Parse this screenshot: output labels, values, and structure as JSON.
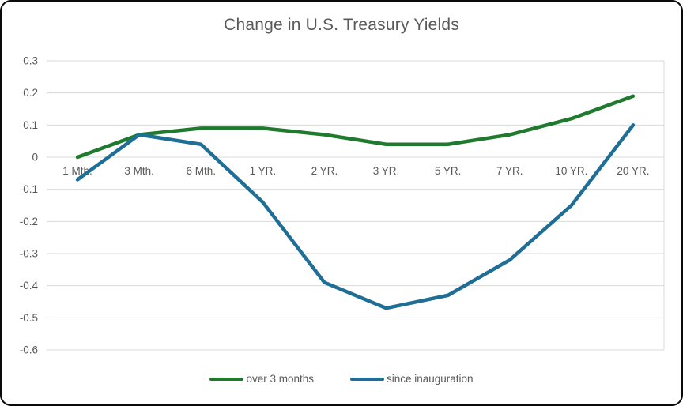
{
  "chart_data": {
    "type": "line",
    "title": "Change in U.S. Treasury Yields",
    "categories": [
      "1 Mth.",
      "3 Mth.",
      "6 Mth.",
      "1 YR.",
      "2 YR.",
      "3 YR.",
      "5 YR.",
      "7 YR.",
      "10 YR.",
      "20 YR."
    ],
    "series": [
      {
        "name": "over 3 months",
        "color": "#1F7A2E",
        "values": [
          0.0,
          0.07,
          0.09,
          0.09,
          0.07,
          0.04,
          0.04,
          0.07,
          0.12,
          0.19
        ]
      },
      {
        "name": "since inauguration",
        "color": "#1F6E96",
        "values": [
          -0.07,
          0.07,
          0.04,
          -0.14,
          -0.39,
          -0.47,
          -0.43,
          -0.32,
          -0.15,
          0.1
        ]
      }
    ],
    "xlabel": "",
    "ylabel": "",
    "ylim": [
      -0.6,
      0.3
    ],
    "ytick_step": 0.1,
    "ytick_labels": [
      "0.3",
      "0.2",
      "0.1",
      "0",
      "-0.1",
      "-0.2",
      "-0.3",
      "-0.4",
      "-0.5",
      "-0.6"
    ],
    "grid": true,
    "legend_position": "bottom"
  },
  "styles": {
    "grid_color": "#D9D9D9",
    "axis_text_color": "#595959",
    "title_color": "#595959",
    "background": "#FFFFFF",
    "frame_border": "#0A0A0A"
  }
}
